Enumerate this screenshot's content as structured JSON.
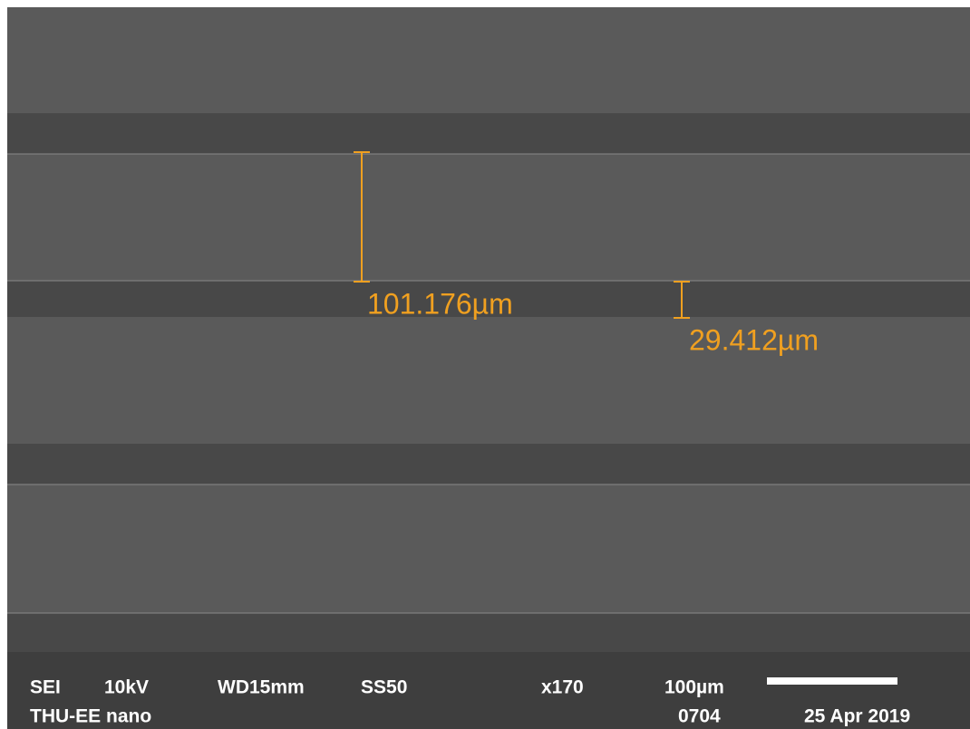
{
  "measurements": [
    {
      "label": "101.176µm"
    },
    {
      "label": "29.412µm"
    }
  ],
  "info": {
    "row1": [
      "SEI",
      "10kV",
      "WD15mm",
      "SS50",
      "x170",
      "100µm"
    ],
    "row2": [
      "THU-EE nano",
      "0704",
      "25 Apr 2019"
    ]
  }
}
